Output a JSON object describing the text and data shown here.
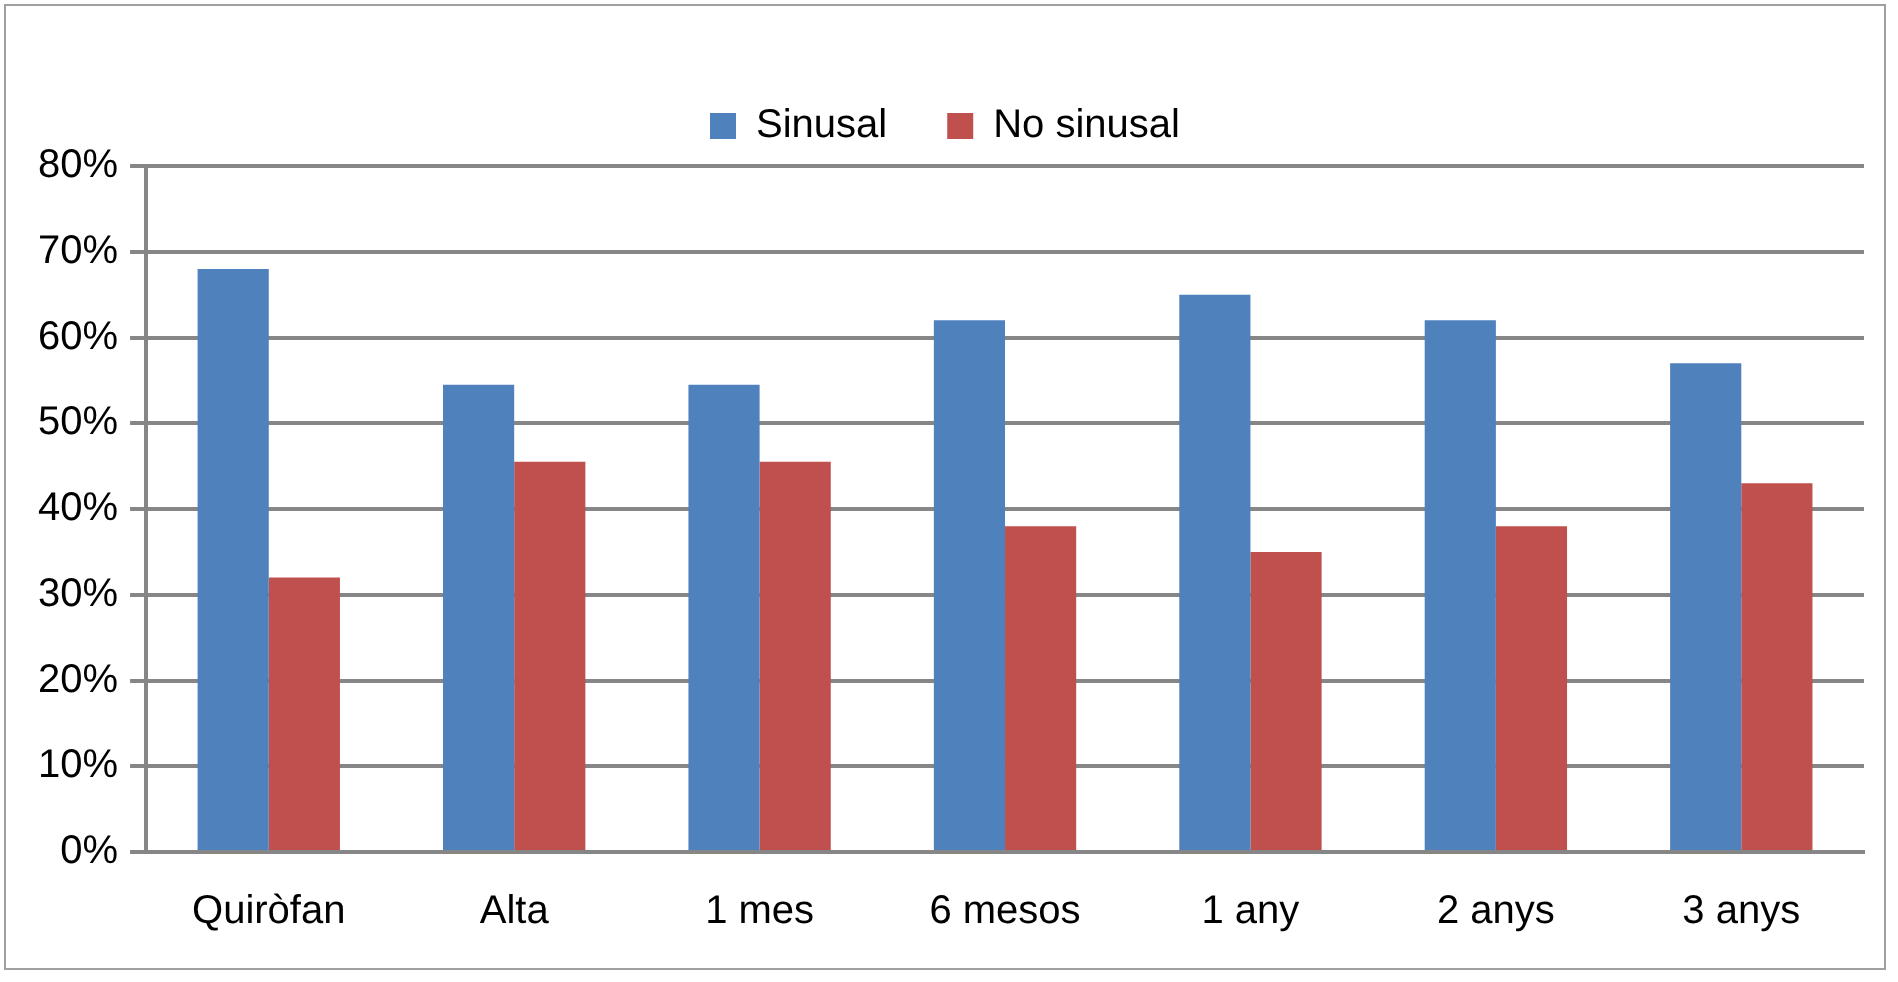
{
  "chart_data": {
    "type": "bar",
    "categories": [
      "Quiròfan",
      "Alta",
      "1 mes",
      "6 mesos",
      "1 any",
      "2 anys",
      "3 anys"
    ],
    "series": [
      {
        "name": "Sinusal",
        "color": "#4f81bd",
        "values": [
          68,
          54.5,
          54.5,
          62,
          65,
          62,
          57
        ]
      },
      {
        "name": "No sinusal",
        "color": "#c0504d",
        "values": [
          32,
          45.5,
          45.5,
          38,
          35,
          38,
          43
        ]
      }
    ],
    "ylim": [
      0,
      80
    ],
    "yticks": [
      {
        "value": 0,
        "label": "0%"
      },
      {
        "value": 10,
        "label": "10%"
      },
      {
        "value": 20,
        "label": "20%"
      },
      {
        "value": 30,
        "label": "30%"
      },
      {
        "value": 40,
        "label": "40%"
      },
      {
        "value": 50,
        "label": "50%"
      },
      {
        "value": 60,
        "label": "60%"
      },
      {
        "value": 70,
        "label": "70%"
      },
      {
        "value": 80,
        "label": "80%"
      }
    ],
    "grid": "y",
    "legend": "top"
  }
}
